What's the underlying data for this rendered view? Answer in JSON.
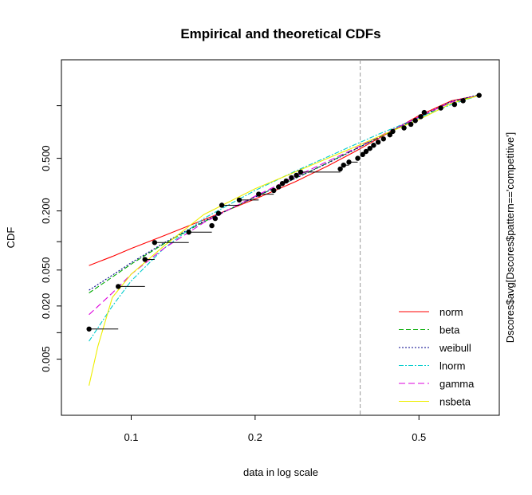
{
  "chart_data": {
    "type": "line",
    "title": "Empirical and theoretical CDFs",
    "xlabel": "data in log scale",
    "ylabel": "CDF",
    "right_label": "Dscores$avg[Dscores$pattern=='competitive']",
    "x_scale": "log",
    "y_scale": "logit",
    "xlim": [
      0.075,
      0.72
    ],
    "ylim": [
      0.0016,
      0.9
    ],
    "x_ticks": [
      0.1,
      0.2,
      0.5
    ],
    "x_tick_labels": [
      "0.1",
      "0.2",
      "0.5"
    ],
    "y_ticks": [
      0.005,
      0.02,
      0.05,
      0.2,
      0.5
    ],
    "y_tick_labels": [
      "0.005",
      "0.020",
      "0.050",
      "0.200",
      "0.500"
    ],
    "y_extra_ticks": [
      0.01,
      0.1,
      0.8
    ],
    "vline_x": 0.36,
    "legend_position": "bottom-right",
    "empirical": [
      {
        "x": 0.079,
        "y": 0.011,
        "x_end": 0.093
      },
      {
        "x": 0.093,
        "y": 0.033,
        "x_end": 0.108
      },
      {
        "x": 0.108,
        "y": 0.065,
        "x_end": 0.114
      },
      {
        "x": 0.114,
        "y": 0.098,
        "x_end": 0.138
      },
      {
        "x": 0.138,
        "y": 0.125,
        "x_end": 0.157
      },
      {
        "x": 0.157,
        "y": 0.145
      },
      {
        "x": 0.16,
        "y": 0.17
      },
      {
        "x": 0.163,
        "y": 0.19,
        "x_end": 0.166
      },
      {
        "x": 0.166,
        "y": 0.225,
        "x_end": 0.183
      },
      {
        "x": 0.183,
        "y": 0.25,
        "x_end": 0.204
      },
      {
        "x": 0.204,
        "y": 0.28,
        "x_end": 0.222
      },
      {
        "x": 0.222,
        "y": 0.3
      },
      {
        "x": 0.228,
        "y": 0.32
      },
      {
        "x": 0.233,
        "y": 0.34
      },
      {
        "x": 0.238,
        "y": 0.355
      },
      {
        "x": 0.245,
        "y": 0.375
      },
      {
        "x": 0.252,
        "y": 0.39
      },
      {
        "x": 0.258,
        "y": 0.41,
        "x_end": 0.322
      },
      {
        "x": 0.322,
        "y": 0.43
      },
      {
        "x": 0.328,
        "y": 0.455,
        "x_end": 0.338
      },
      {
        "x": 0.338,
        "y": 0.475,
        "x_end": 0.355
      },
      {
        "x": 0.355,
        "y": 0.5
      },
      {
        "x": 0.365,
        "y": 0.525
      },
      {
        "x": 0.372,
        "y": 0.545
      },
      {
        "x": 0.38,
        "y": 0.565
      },
      {
        "x": 0.388,
        "y": 0.585
      },
      {
        "x": 0.398,
        "y": 0.605
      },
      {
        "x": 0.41,
        "y": 0.625
      },
      {
        "x": 0.425,
        "y": 0.65
      },
      {
        "x": 0.432,
        "y": 0.67
      },
      {
        "x": 0.46,
        "y": 0.69
      },
      {
        "x": 0.478,
        "y": 0.71
      },
      {
        "x": 0.49,
        "y": 0.73
      },
      {
        "x": 0.505,
        "y": 0.75
      },
      {
        "x": 0.515,
        "y": 0.77
      },
      {
        "x": 0.565,
        "y": 0.79
      },
      {
        "x": 0.61,
        "y": 0.805
      },
      {
        "x": 0.64,
        "y": 0.82
      },
      {
        "x": 0.7,
        "y": 0.84
      }
    ],
    "series": [
      {
        "name": "norm",
        "color": "#ff0000",
        "dash": "",
        "x": [
          0.079,
          0.09,
          0.1,
          0.12,
          0.15,
          0.2,
          0.25,
          0.3,
          0.35,
          0.4,
          0.5,
          0.6,
          0.7
        ],
        "y": [
          0.056,
          0.07,
          0.085,
          0.115,
          0.165,
          0.255,
          0.35,
          0.45,
          0.545,
          0.63,
          0.755,
          0.82,
          0.84
        ]
      },
      {
        "name": "beta",
        "color": "#00aa00",
        "dash": "6,3",
        "x": [
          0.079,
          0.09,
          0.1,
          0.12,
          0.15,
          0.2,
          0.25,
          0.3,
          0.35,
          0.4,
          0.5,
          0.6,
          0.7
        ],
        "y": [
          0.028,
          0.042,
          0.058,
          0.095,
          0.158,
          0.265,
          0.37,
          0.47,
          0.56,
          0.635,
          0.745,
          0.815,
          0.84
        ]
      },
      {
        "name": "weibull",
        "color": "#00008b",
        "dash": "2,2",
        "x": [
          0.079,
          0.09,
          0.1,
          0.12,
          0.15,
          0.2,
          0.25,
          0.3,
          0.35,
          0.4,
          0.5,
          0.6,
          0.7
        ],
        "y": [
          0.03,
          0.044,
          0.06,
          0.097,
          0.16,
          0.265,
          0.37,
          0.468,
          0.558,
          0.635,
          0.748,
          0.818,
          0.842
        ]
      },
      {
        "name": "lnorm",
        "color": "#00cccc",
        "dash": "6,2,2,2",
        "x": [
          0.079,
          0.09,
          0.1,
          0.12,
          0.15,
          0.2,
          0.25,
          0.3,
          0.35,
          0.4,
          0.5,
          0.6,
          0.7
        ],
        "y": [
          0.008,
          0.02,
          0.038,
          0.085,
          0.17,
          0.3,
          0.415,
          0.51,
          0.59,
          0.655,
          0.745,
          0.805,
          0.84
        ]
      },
      {
        "name": "gamma",
        "color": "#dd00dd",
        "dash": "8,4",
        "x": [
          0.079,
          0.09,
          0.1,
          0.12,
          0.15,
          0.2,
          0.25,
          0.3,
          0.35,
          0.4,
          0.5,
          0.6,
          0.7
        ],
        "y": [
          0.016,
          0.028,
          0.045,
          0.085,
          0.155,
          0.27,
          0.38,
          0.48,
          0.565,
          0.64,
          0.748,
          0.815,
          0.84
        ]
      },
      {
        "name": "nsbeta",
        "color": "#eeee00",
        "dash": "",
        "x": [
          0.079,
          0.083,
          0.09,
          0.1,
          0.12,
          0.15,
          0.2,
          0.25,
          0.3,
          0.35,
          0.4,
          0.5,
          0.6,
          0.7
        ],
        "y": [
          0.0025,
          0.007,
          0.025,
          0.045,
          0.09,
          0.185,
          0.31,
          0.41,
          0.5,
          0.575,
          0.64,
          0.735,
          0.81,
          0.84
        ]
      }
    ]
  }
}
